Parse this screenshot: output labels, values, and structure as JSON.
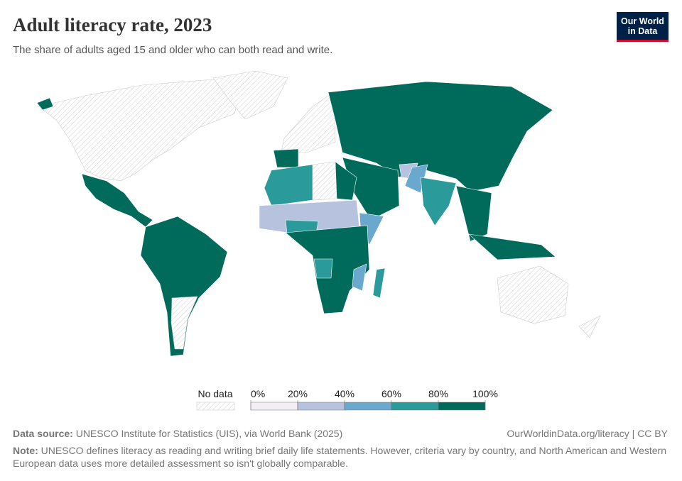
{
  "header": {
    "title": "Adult literacy rate, 2023",
    "subtitle": "The share of adults aged 15 and older who can both read and write.",
    "logo_line1": "Our World",
    "logo_line2": "in Data"
  },
  "legend": {
    "no_data": "No data",
    "bins": [
      {
        "value": 0,
        "label": "0%"
      },
      {
        "value": 20,
        "label": "20%"
      },
      {
        "value": 40,
        "label": "40%"
      },
      {
        "value": 60,
        "label": "60%"
      },
      {
        "value": 80,
        "label": "80%"
      },
      {
        "value": 100,
        "label": "100%"
      }
    ],
    "colors": [
      "#f3eef6",
      "#b7c3de",
      "#6aa8cd",
      "#2b9a9b",
      "#006a5b"
    ]
  },
  "footer": {
    "source_label": "Data source:",
    "source": "UNESCO Institute for Statistics (UIS), via World Bank (2025)",
    "link": "OurWorldinData.org/literacy | CC BY",
    "note_label": "Note:",
    "note": "UNESCO defines literacy as reading and writing brief daily life statements. However, criteria vary by country, and North American and Western European data uses more detailed assessment so isn't globally comparable."
  }
}
